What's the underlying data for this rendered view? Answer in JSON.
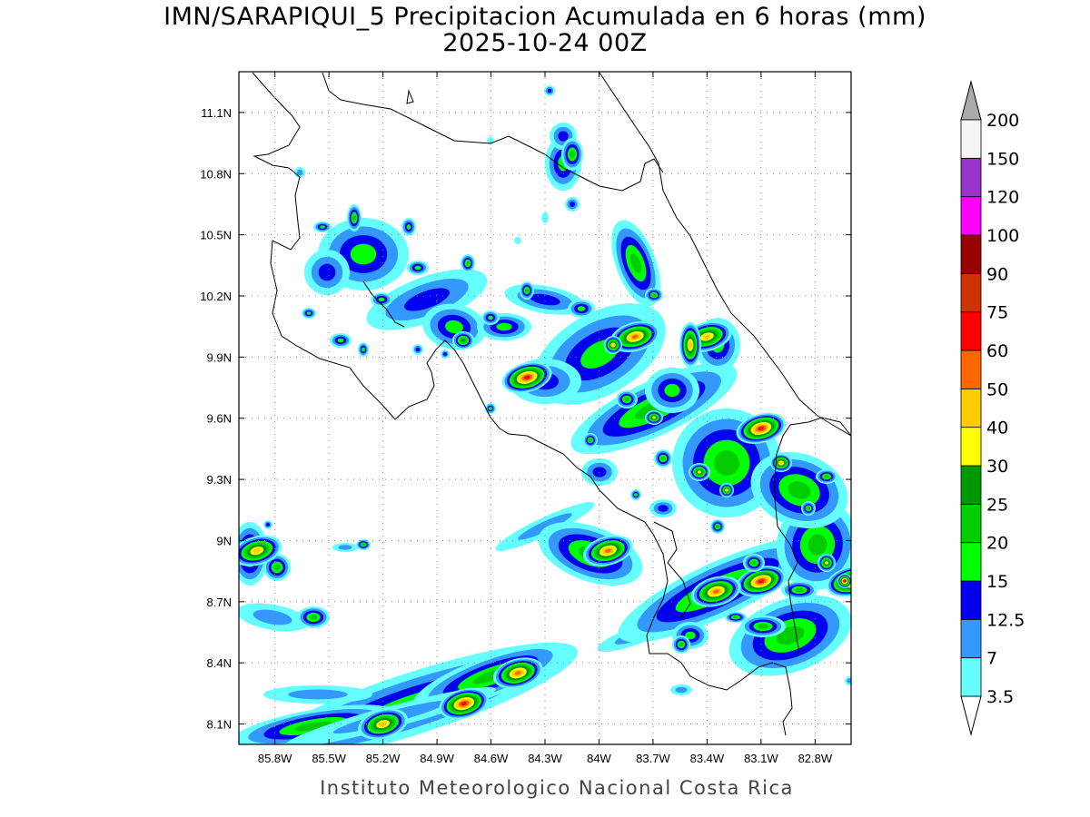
{
  "title": {
    "line1": "IMN/SARAPIQUI_5 Precipitacion Acumulada en 6 horas (mm)",
    "line2": "2025-10-24 00Z"
  },
  "footer": "Instituto Meteorologico Nacional Costa Rica",
  "map": {
    "lon_range": [
      -86.0,
      -82.6
    ],
    "lat_range": [
      8.0,
      11.3
    ],
    "lat_ticks": [
      {
        "value": 11.1,
        "label": "11.1N"
      },
      {
        "value": 10.8,
        "label": "10.8N"
      },
      {
        "value": 10.5,
        "label": "10.5N"
      },
      {
        "value": 10.2,
        "label": "10.2N"
      },
      {
        "value": 9.9,
        "label": "9.9N"
      },
      {
        "value": 9.6,
        "label": "9.6N"
      },
      {
        "value": 9.3,
        "label": "9.3N"
      },
      {
        "value": 9.0,
        "label": "9N"
      },
      {
        "value": 8.7,
        "label": "8.7N"
      },
      {
        "value": 8.4,
        "label": "8.4N"
      },
      {
        "value": 8.1,
        "label": "8.1N"
      }
    ],
    "lon_ticks": [
      {
        "value": -85.8,
        "label": "85.8W"
      },
      {
        "value": -85.5,
        "label": "85.5W"
      },
      {
        "value": -85.2,
        "label": "85.2W"
      },
      {
        "value": -84.9,
        "label": "84.9W"
      },
      {
        "value": -84.6,
        "label": "84.6W"
      },
      {
        "value": -84.3,
        "label": "84.3W"
      },
      {
        "value": -84.0,
        "label": "84W"
      },
      {
        "value": -83.7,
        "label": "83.7W"
      },
      {
        "value": -83.4,
        "label": "83.4W"
      },
      {
        "value": -83.1,
        "label": "83.1W"
      },
      {
        "value": -82.8,
        "label": "82.8W"
      }
    ],
    "grid": "dotted"
  },
  "colorbar": {
    "units": "mm",
    "levels": [
      "3.5",
      "7",
      "12.5",
      "15",
      "20",
      "25",
      "30",
      "40",
      "50",
      "60",
      "75",
      "90",
      "100",
      "120",
      "150",
      "200"
    ],
    "colors": [
      "#66ffff",
      "#3399ff",
      "#0000ee",
      "#00ff00",
      "#00cc00",
      "#009900",
      "#ffff00",
      "#ffcc00",
      "#ff6600",
      "#ff0000",
      "#cc3300",
      "#990000",
      "#ff00ff",
      "#9933cc",
      "#f5f5f5",
      "#aaaaaa"
    ]
  },
  "precip_cells": [
    {
      "lon": -84.75,
      "lat": 8.2,
      "max": 60
    },
    {
      "lon": -85.2,
      "lat": 8.1,
      "max": 40
    },
    {
      "lon": -84.45,
      "lat": 8.35,
      "max": 50
    },
    {
      "lon": -83.95,
      "lat": 8.95,
      "max": 50
    },
    {
      "lon": -83.1,
      "lat": 9.55,
      "max": 60
    },
    {
      "lon": -84.4,
      "lat": 9.8,
      "max": 60
    },
    {
      "lon": -83.8,
      "lat": 10.0,
      "max": 50
    },
    {
      "lon": -83.4,
      "lat": 10.0,
      "max": 40
    },
    {
      "lon": -85.9,
      "lat": 8.95,
      "max": 40
    },
    {
      "lon": -82.6,
      "lat": 8.8,
      "max": 60
    },
    {
      "lon": -83.1,
      "lat": 8.8,
      "max": 60
    },
    {
      "lon": -83.35,
      "lat": 8.75,
      "max": 50
    }
  ]
}
